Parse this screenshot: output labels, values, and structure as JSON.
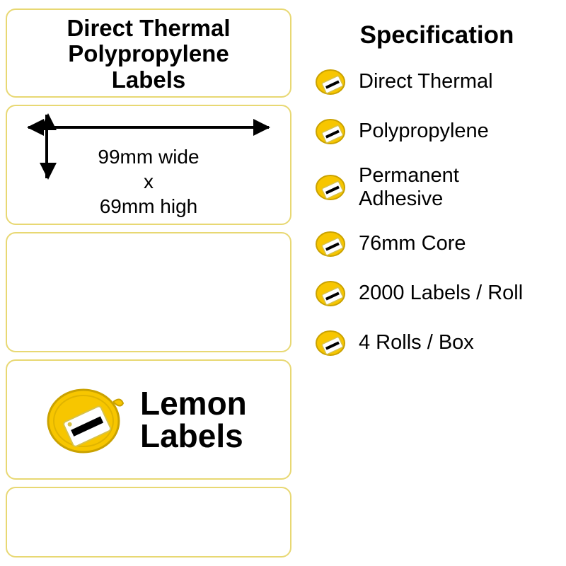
{
  "colors": {
    "panel_border": "#e8d873",
    "arrow": "#000000",
    "text": "#000000",
    "lemon_fill": "#f7c600",
    "lemon_stroke": "#caa200",
    "tag_white": "#ffffff",
    "tag_border": "#d7c24a",
    "background": "#ffffff"
  },
  "typography": {
    "title_fontsize": 33,
    "dim_fontsize": 28,
    "logo_fontsize": 46,
    "spec_title_fontsize": 35,
    "spec_item_fontsize": 29
  },
  "product_title": {
    "line1": "Direct Thermal",
    "line2": "Polypropylene",
    "line3": "Labels"
  },
  "dimensions": {
    "line1": "99mm wide",
    "line2": "x",
    "line3": "69mm high"
  },
  "brand": {
    "line1": "Lemon",
    "line2": "Labels"
  },
  "spec": {
    "title": "Specification",
    "items": [
      {
        "text": "Direct Thermal"
      },
      {
        "text": "Polypropylene"
      },
      {
        "text": "Permanent\nAdhesive"
      },
      {
        "text": "76mm Core"
      },
      {
        "text": "2000 Labels / Roll"
      },
      {
        "text": "4 Rolls / Box"
      }
    ]
  }
}
